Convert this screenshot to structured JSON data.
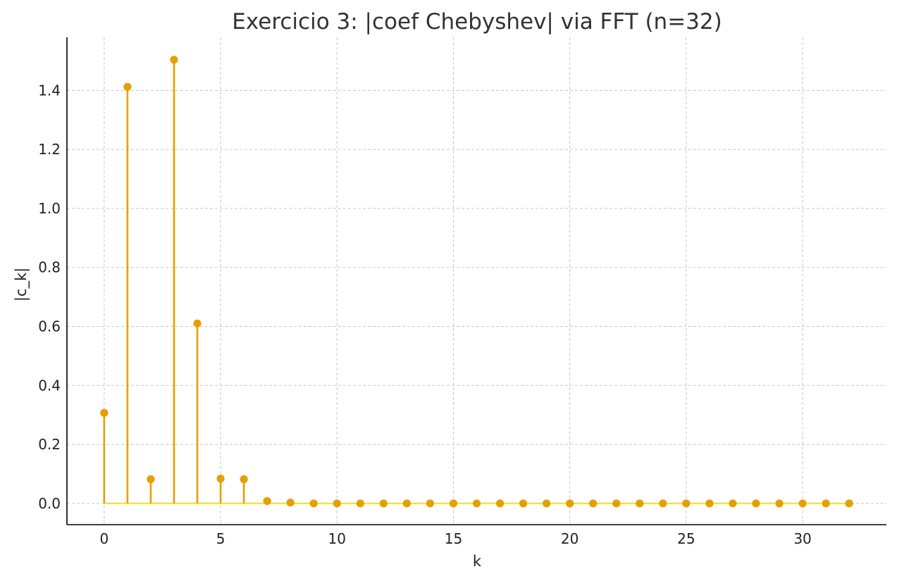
{
  "chart_data": {
    "type": "stem",
    "title": "Exercicio 3: |coef Chebyshev| via FFT (n=32)",
    "xlabel": "k",
    "ylabel": "|c_k|",
    "xlim": [
      -1.6,
      33.6
    ],
    "ylim": [
      -0.072,
      1.58
    ],
    "xticks": [
      0,
      5,
      10,
      15,
      20,
      25,
      30
    ],
    "yticks": [
      0.0,
      0.2,
      0.4,
      0.6,
      0.8,
      1.0,
      1.2,
      1.4
    ],
    "ytick_labels": [
      "0.0",
      "0.2",
      "0.4",
      "0.6",
      "0.8",
      "1.0",
      "1.2",
      "1.4"
    ],
    "grid": true,
    "stem_color": "#E69F00",
    "baseline_color": "#F0E442",
    "x": [
      0,
      1,
      2,
      3,
      4,
      5,
      6,
      7,
      8,
      9,
      10,
      11,
      12,
      13,
      14,
      15,
      16,
      17,
      18,
      19,
      20,
      21,
      22,
      23,
      24,
      25,
      26,
      27,
      28,
      29,
      30,
      31,
      32
    ],
    "values": [
      0.307,
      1.412,
      0.082,
      1.504,
      0.61,
      0.084,
      0.082,
      0.008,
      0.003,
      0.0,
      0.0,
      0.0,
      0.0,
      0.0,
      0.0,
      0.0,
      0.0,
      0.0,
      0.0,
      0.0,
      0.0,
      0.0,
      0.0,
      0.0,
      0.0,
      0.0,
      0.0,
      0.0,
      0.0,
      0.0,
      0.0,
      0.0,
      0.0
    ]
  }
}
